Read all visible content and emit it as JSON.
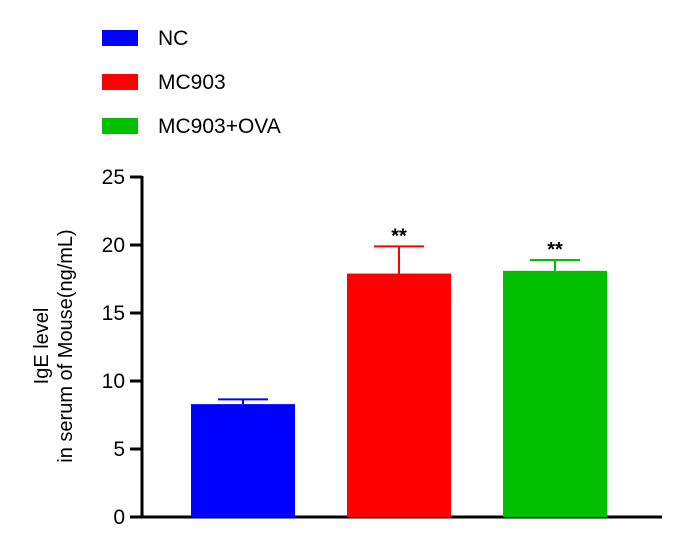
{
  "chart_data": {
    "type": "bar",
    "categories": [
      "NC",
      "MC903",
      "MC903+OVA"
    ],
    "values": [
      8.3,
      17.9,
      18.1
    ],
    "errors": [
      0.35,
      2.0,
      0.8
    ],
    "significance": [
      "",
      "**",
      "**"
    ],
    "colors": [
      "#0000FF",
      "#FF0000",
      "#00C000"
    ],
    "ylabel": [
      "IgE level",
      "in serum of Mouse(ng/mL)"
    ],
    "ylim": [
      0,
      25
    ],
    "yticks": [
      0,
      5,
      10,
      15,
      20,
      25
    ],
    "legend": {
      "placement": "top-left",
      "entries": [
        "NC",
        "MC903",
        "MC903+OVA"
      ]
    },
    "grid": false
  }
}
